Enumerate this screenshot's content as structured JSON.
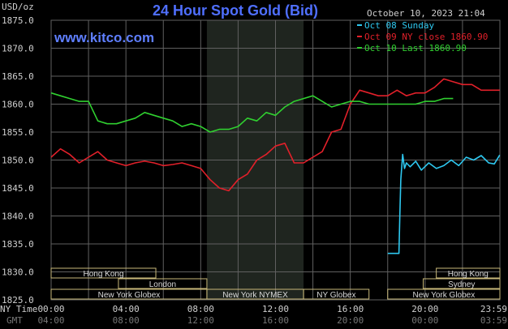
{
  "title": "24 Hour Spot Gold (Bid)",
  "unit_label": "USD/oz",
  "timestamp": "October 10, 2023 21:04",
  "watermark": "www.kitco.com",
  "row_labels": {
    "ny_time": "NY Time",
    "gmt": "GMT"
  },
  "sessions": {
    "hong_kong": "Hong Kong",
    "london": "London",
    "new_york_globex": "New York Globex",
    "new_york_nymex": "New York NYMEX",
    "ny_globex": "NY Globex",
    "sydney": "Sydney"
  },
  "colors": {
    "background": "#000000",
    "grid": "#606060",
    "nymex_shade": "#1f251f",
    "title": "#4f6fff",
    "watermark": "#5f7fff",
    "session_box": "#c8b87a",
    "oct08": "#2ec8f0",
    "oct09": "#e2202a",
    "oct10": "#30d030"
  },
  "chart_data": {
    "type": "line",
    "title": "24 Hour Spot Gold (Bid)",
    "ylabel": "USD/oz",
    "ylim": [
      1825.0,
      1875.0
    ],
    "yticks": [
      "1825.0",
      "1830.0",
      "1835.0",
      "1840.0",
      "1845.0",
      "1850.0",
      "1855.0",
      "1860.0",
      "1865.0",
      "1870.0",
      "1875.0"
    ],
    "xlim": [
      0,
      24
    ],
    "xticks_ny": [
      "00:00",
      "04:00",
      "08:00",
      "12:00",
      "16:00",
      "20:00",
      "23:59"
    ],
    "xticks_gmt": [
      "04:00",
      "08:00",
      "12:00",
      "16:00",
      "20:00",
      "00:00",
      "03:59"
    ],
    "grid": true,
    "legend_position": "top-right",
    "series": [
      {
        "name": "Oct 08 Sunday",
        "color": "#2ec8f0",
        "x": [
          18.0,
          18.6,
          18.65,
          18.7,
          18.8,
          18.9,
          19.0,
          19.2,
          19.5,
          19.8,
          20.2,
          20.6,
          21.0,
          21.4,
          21.8,
          22.2,
          22.6,
          23.0,
          23.4,
          23.7,
          23.99
        ],
        "y": [
          1833.3,
          1833.3,
          1840.0,
          1846.5,
          1851.0,
          1848.5,
          1849.5,
          1848.8,
          1849.8,
          1848.2,
          1849.5,
          1848.5,
          1849.0,
          1850.0,
          1849.0,
          1850.5,
          1850.0,
          1850.8,
          1849.5,
          1849.3,
          1850.9
        ]
      },
      {
        "name": "Oct 09 NY close 1860.90",
        "color": "#e2202a",
        "x": [
          0,
          0.5,
          1.0,
          1.5,
          2.0,
          2.5,
          3.0,
          3.5,
          4.0,
          4.5,
          5.0,
          5.5,
          6.0,
          6.5,
          7.0,
          7.5,
          8.0,
          8.5,
          9.0,
          9.5,
          10.0,
          10.5,
          11.0,
          11.5,
          12.0,
          12.5,
          13.0,
          13.5,
          14.0,
          14.5,
          15.0,
          15.5,
          16.0,
          16.5,
          17.0,
          17.5,
          18.0,
          18.5,
          19.0,
          19.5,
          20.0,
          20.5,
          21.0,
          21.5,
          22.0,
          22.5,
          23.0,
          23.5,
          23.99
        ],
        "y": [
          1850.5,
          1852.0,
          1851.0,
          1849.5,
          1850.5,
          1851.5,
          1850.0,
          1849.5,
          1849.0,
          1849.5,
          1849.8,
          1849.5,
          1849.0,
          1849.2,
          1849.5,
          1849.0,
          1848.5,
          1846.5,
          1845.0,
          1844.5,
          1846.5,
          1847.5,
          1850.0,
          1851.0,
          1852.5,
          1853.0,
          1849.5,
          1849.5,
          1850.5,
          1851.5,
          1855.0,
          1855.5,
          1860.0,
          1862.5,
          1862.0,
          1861.5,
          1861.5,
          1862.5,
          1861.5,
          1862.0,
          1862.0,
          1863.0,
          1864.5,
          1864.0,
          1863.5,
          1863.5,
          1862.5,
          1862.5,
          1862.5
        ]
      },
      {
        "name": "Oct 10 Last 1860.90",
        "color": "#30d030",
        "x": [
          0,
          0.5,
          1.0,
          1.5,
          2.0,
          2.5,
          3.0,
          3.5,
          4.0,
          4.5,
          5.0,
          5.5,
          6.0,
          6.5,
          7.0,
          7.5,
          8.0,
          8.5,
          9.0,
          9.5,
          10.0,
          10.5,
          11.0,
          11.5,
          12.0,
          12.5,
          13.0,
          13.5,
          14.0,
          14.5,
          15.0,
          15.5,
          16.0,
          16.5,
          17.0,
          17.5,
          18.0,
          18.5,
          19.0,
          19.5,
          20.0,
          20.5,
          21.0,
          21.5
        ],
        "y": [
          1862.0,
          1861.5,
          1861.0,
          1860.5,
          1860.5,
          1857.0,
          1856.5,
          1856.5,
          1857.0,
          1857.5,
          1858.5,
          1858.0,
          1857.5,
          1857.0,
          1856.0,
          1856.5,
          1856.0,
          1855.0,
          1855.5,
          1855.5,
          1856.0,
          1857.5,
          1857.0,
          1858.5,
          1858.0,
          1859.5,
          1860.5,
          1861.0,
          1861.5,
          1860.5,
          1859.5,
          1860.0,
          1860.5,
          1860.5,
          1860.0,
          1860.0,
          1860.0,
          1860.0,
          1860.0,
          1860.0,
          1860.5,
          1860.5,
          1861.0,
          1861.0
        ]
      }
    ]
  }
}
